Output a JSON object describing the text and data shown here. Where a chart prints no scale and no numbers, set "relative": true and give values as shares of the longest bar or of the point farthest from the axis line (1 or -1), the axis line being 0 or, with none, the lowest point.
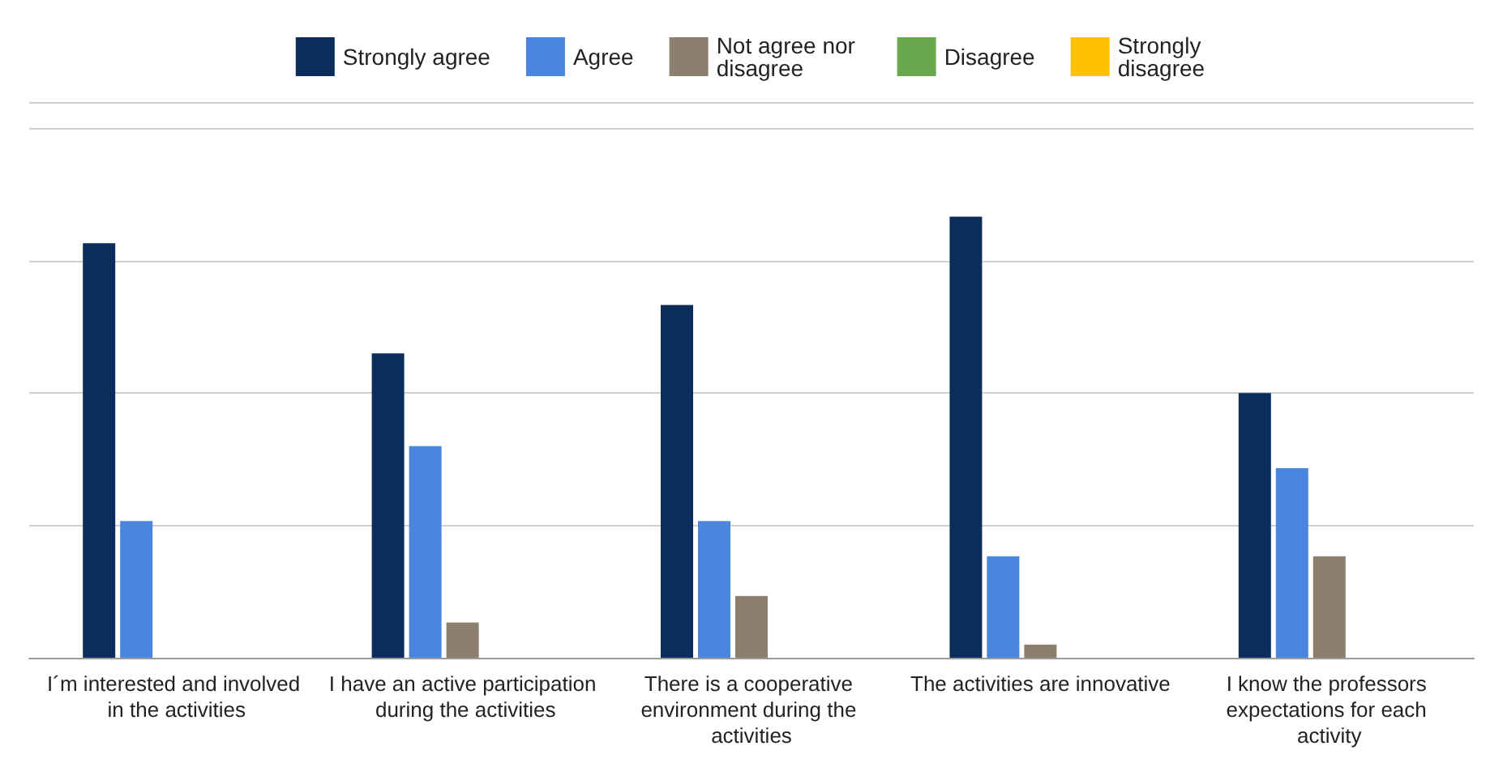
{
  "chart_data": {
    "type": "bar",
    "relative": true,
    "grid": "y",
    "legend": "top",
    "categories": [
      "I´m interested and involved in the activities",
      "I have an active participation during the activities",
      "There is a cooperative environment during the activities",
      "The activities are innovative",
      "I know the professors expectations for each activity"
    ],
    "series": [
      {
        "name": "Strongly agree",
        "color": "#0b2d5b",
        "values": [
          0.94,
          0.69,
          0.8,
          1,
          0.6
        ]
      },
      {
        "name": "Agree",
        "color": "#4a86e0",
        "values": [
          0.31,
          0.48,
          0.31,
          0.23,
          0.43
        ]
      },
      {
        "name": "Not agree nor disagree",
        "color": "#8c7f6e",
        "values": [
          null,
          0.08,
          0.14,
          0.03,
          0.23
        ]
      },
      {
        "name": "Disagree",
        "color": "#6aa84f",
        "values": [
          null,
          null,
          null,
          null,
          null
        ]
      },
      {
        "name": "Strongly disagree",
        "color": "#ffc000",
        "values": [
          null,
          null,
          null,
          null,
          null
        ]
      }
    ]
  }
}
